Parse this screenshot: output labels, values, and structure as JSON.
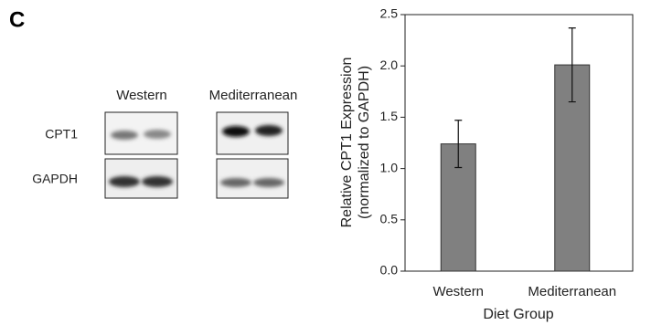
{
  "panel_label": "C",
  "blot": {
    "columns": [
      "Western",
      "Mediterranean"
    ],
    "rows": [
      "CPT1",
      "GAPDH"
    ]
  },
  "chart_data": {
    "type": "bar",
    "categories": [
      "Western",
      "Mediterranean"
    ],
    "values": [
      1.24,
      2.01
    ],
    "errors": [
      0.23,
      0.36
    ],
    "color": "#808080",
    "ylabel": [
      "Relative CPT1 Expression",
      "(normalized to GAPDH)"
    ],
    "xlabel": "Diet Group",
    "ylim": [
      0,
      2.5
    ],
    "yticks": [
      {
        "value": 0,
        "label": "0.0"
      },
      {
        "value": 0.5,
        "label": "0.5"
      },
      {
        "value": 1,
        "label": "1.0"
      },
      {
        "value": 1.5,
        "label": "1.5"
      },
      {
        "value": 2,
        "label": "2.0"
      },
      {
        "value": 2.5,
        "label": "2.5"
      }
    ]
  }
}
